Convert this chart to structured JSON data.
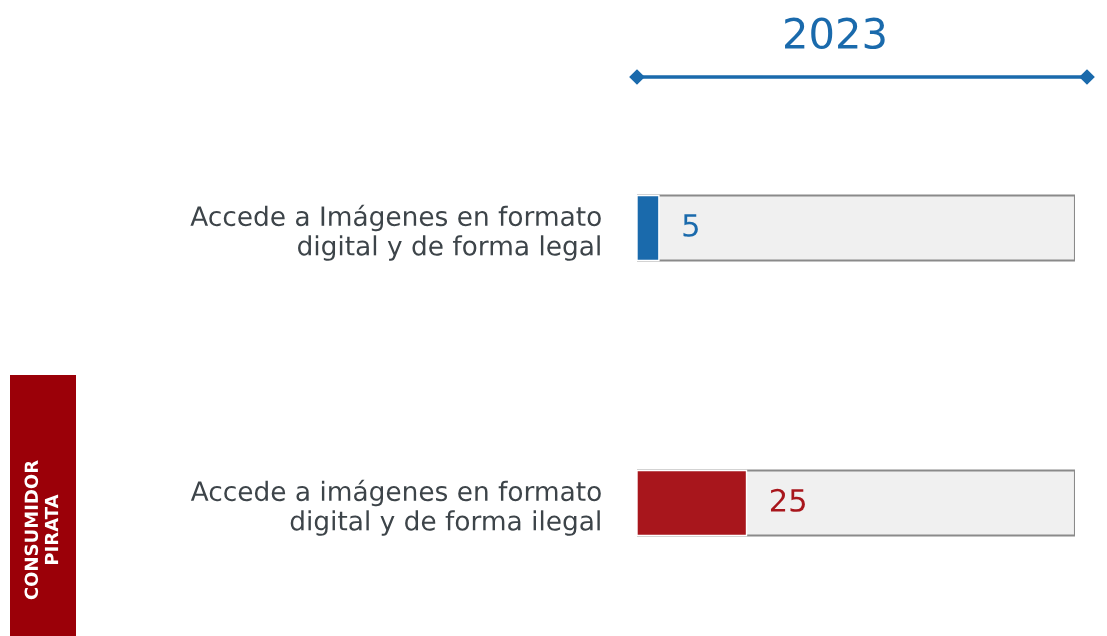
{
  "chart_data": {
    "type": "bar",
    "orientation": "horizontal",
    "title": "2023",
    "categories": [
      "Accede a Imágenes en formato\ndigital y de forma legal",
      "Accede a imágenes en formato\ndigital y de forma ilegal"
    ],
    "values": [
      5,
      25
    ],
    "colors": [
      "#1a6aac",
      "#a8161c"
    ],
    "data_labels": true,
    "xlim": [
      0,
      100
    ],
    "tick_labels": "y",
    "annotations": [
      "CONSUMIDOR\nPIRATA"
    ]
  }
}
